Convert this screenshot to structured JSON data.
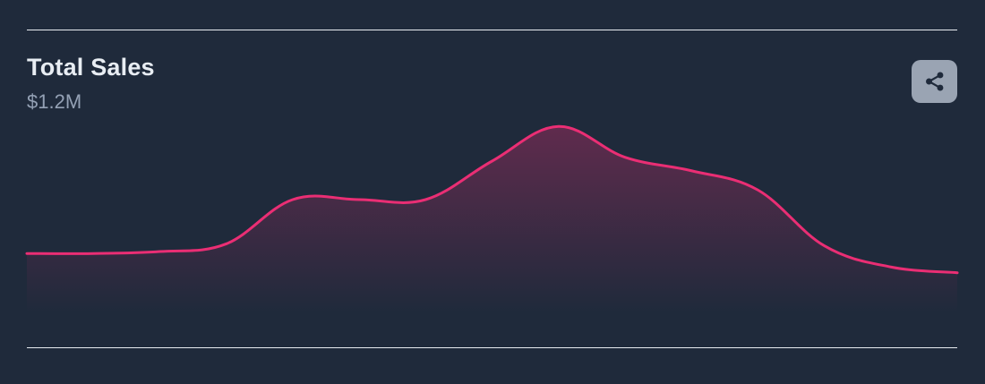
{
  "header": {
    "title": "Total Sales",
    "value": "$1.2M"
  },
  "actions": {
    "share_icon": "share-icon"
  },
  "colors": {
    "background": "#1f2a3b",
    "line": "#ea2e74",
    "fill_top": "#ea2e74",
    "rule": "#e8ecf1"
  },
  "chart_data": {
    "type": "area",
    "title": "Total Sales",
    "xlabel": "",
    "ylabel": "",
    "grid": false,
    "ylim": [
      0,
      100
    ],
    "x": [
      0,
      1,
      2,
      3,
      4,
      5,
      6,
      7,
      8,
      9,
      10,
      11,
      12,
      13,
      14
    ],
    "series": [
      {
        "values": [
          32,
          32,
          33,
          37,
          60,
          60,
          60,
          80,
          98,
          82,
          75,
          65,
          36,
          25,
          22
        ]
      }
    ]
  }
}
